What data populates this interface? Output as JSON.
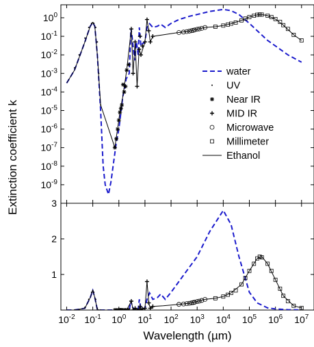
{
  "chart_data": {
    "type": "line",
    "xlabel": "Wavelength (µm)",
    "ylabel": "Extinction coefficient k",
    "x_scale": "log",
    "x_ticks": [
      0.01,
      0.1,
      1,
      10,
      100,
      1000,
      10000,
      100000,
      1000000,
      10000000
    ],
    "x_tick_labels": [
      "10^-2",
      "10^-1",
      "10^0",
      "10^1",
      "10^2",
      "10^3",
      "10^4",
      "10^5",
      "10^6",
      "10^7"
    ],
    "xlim": [
      0.006,
      30000000
    ],
    "legend_position": "right",
    "grid": false,
    "panels": [
      {
        "name": "top",
        "y_scale": "log",
        "ylim": [
          1e-10,
          5
        ],
        "y_ticks": [
          1,
          0.1,
          0.01,
          0.001,
          0.0001,
          1e-05,
          1e-06,
          1e-07,
          1e-08,
          1e-09
        ],
        "y_tick_labels": [
          "10^0",
          "10^-1",
          "10^-2",
          "10^-3",
          "10^-4",
          "10^-5",
          "10^-6",
          "10^-7",
          "10^-8",
          "10^-9"
        ]
      },
      {
        "name": "bottom",
        "y_scale": "linear",
        "ylim": [
          0,
          3
        ],
        "y_ticks": [
          1,
          2,
          3
        ],
        "y_tick_labels": [
          "1",
          "2",
          "3"
        ]
      }
    ],
    "series": [
      {
        "name": "water",
        "style": "dashed",
        "color": "#1a1acc",
        "marker": "none",
        "x": [
          0.01,
          0.02,
          0.05,
          0.08,
          0.1,
          0.12,
          0.15,
          0.2,
          0.25,
          0.3,
          0.4,
          0.5,
          0.6,
          0.8,
          1.0,
          1.4,
          1.9,
          2.5,
          2.9,
          3.2,
          4.0,
          4.7,
          5.5,
          6.1,
          7.0,
          8.0,
          10,
          12,
          15,
          20,
          30,
          40,
          60,
          100,
          200,
          500,
          1000,
          3000,
          10000,
          20000,
          40000,
          100000,
          200000,
          500000,
          1000000,
          3000000,
          10000000
        ],
        "y": [
          0.0003,
          0.0015,
          0.05,
          0.35,
          0.55,
          0.35,
          0.01,
          1e-05,
          1e-08,
          1e-09,
          3e-10,
          1.5e-09,
          1e-08,
          2e-07,
          1e-06,
          5e-05,
          0.0005,
          0.001,
          0.26,
          0.1,
          0.005,
          0.05,
          0.01,
          0.3,
          0.03,
          0.04,
          0.05,
          0.3,
          0.48,
          0.3,
          0.35,
          0.45,
          0.3,
          0.5,
          0.8,
          1.2,
          1.5,
          2.2,
          2.8,
          2.4,
          1.5,
          0.5,
          0.2,
          0.06,
          0.03,
          0.01,
          0.004
        ]
      },
      {
        "name": "UV",
        "style": "none",
        "color": "#000000",
        "marker": "dot",
        "x": [
          0.02,
          0.03,
          0.05,
          0.07,
          0.09,
          0.1,
          0.11,
          0.13,
          0.15,
          0.17,
          0.2
        ],
        "y": [
          0.002,
          0.01,
          0.08,
          0.3,
          0.5,
          0.55,
          0.5,
          0.3,
          0.05,
          0.001,
          2e-05
        ]
      },
      {
        "name": "Near IR",
        "style": "none",
        "color": "#000000",
        "marker": "asterisk",
        "x": [
          0.7,
          0.8,
          0.9,
          1.0,
          1.1,
          1.2,
          1.3,
          1.45,
          1.6,
          1.8,
          2.0,
          2.4
        ],
        "y": [
          1e-07,
          3e-07,
          1e-06,
          3e-06,
          8e-06,
          1.3e-05,
          2e-05,
          0.00025,
          0.0001,
          0.0002,
          0.0015,
          0.003
        ]
      },
      {
        "name": "MID IR",
        "style": "none",
        "color": "#000000",
        "marker": "plus",
        "x": [
          3,
          3.5,
          4.2,
          5,
          6,
          6.5,
          7,
          8,
          10,
          12,
          14,
          16,
          20
        ],
        "y": [
          0.25,
          0.001,
          0.05,
          0.0002,
          0.02,
          0.1,
          0.01,
          0.03,
          0.05,
          0.8,
          0.2,
          0.05,
          0.1
        ]
      },
      {
        "name": "Microwave",
        "style": "none",
        "color": "#000000",
        "marker": "circle",
        "x": [
          200,
          300,
          400,
          500,
          600,
          700,
          800,
          1000,
          1200,
          1500,
          2000
        ],
        "y": [
          0.16,
          0.17,
          0.18,
          0.19,
          0.2,
          0.21,
          0.22,
          0.24,
          0.25,
          0.27,
          0.3
        ]
      },
      {
        "name": "Millimeter",
        "style": "none",
        "color": "#000000",
        "marker": "square",
        "x": [
          5000,
          10000,
          15000,
          20000,
          30000,
          50000,
          70000,
          100000,
          150000,
          200000,
          250000,
          300000,
          500000,
          700000,
          1000000,
          1500000,
          2000000,
          3000000,
          5000000,
          10000000
        ],
        "y": [
          0.33,
          0.38,
          0.43,
          0.48,
          0.55,
          0.72,
          0.9,
          1.1,
          1.3,
          1.45,
          1.5,
          1.48,
          1.3,
          1.1,
          0.85,
          0.6,
          0.4,
          0.25,
          0.12,
          0.06
        ]
      },
      {
        "name": "Ethanol",
        "style": "solid",
        "color": "#000000",
        "marker": "none",
        "x": [
          0.01,
          0.02,
          0.05,
          0.08,
          0.1,
          0.12,
          0.15,
          0.2,
          0.7,
          1.1,
          1.4,
          2,
          3,
          3.5,
          4.2,
          5,
          6,
          7,
          10,
          12,
          14,
          16,
          20,
          50,
          100,
          200,
          500,
          1000,
          2000,
          5000,
          10000,
          20000,
          50000,
          100000,
          200000,
          300000,
          500000,
          1000000,
          2000000,
          5000000,
          10000000
        ],
        "y": [
          0.0003,
          0.0015,
          0.05,
          0.35,
          0.55,
          0.35,
          0.01,
          2e-05,
          1e-07,
          8e-06,
          5e-05,
          0.0015,
          0.25,
          0.001,
          0.05,
          0.0002,
          0.02,
          0.01,
          0.05,
          0.8,
          0.2,
          0.05,
          0.1,
          0.12,
          0.14,
          0.16,
          0.19,
          0.24,
          0.3,
          0.33,
          0.38,
          0.48,
          0.72,
          1.1,
          1.45,
          1.5,
          1.3,
          0.85,
          0.4,
          0.12,
          0.06
        ]
      }
    ]
  }
}
